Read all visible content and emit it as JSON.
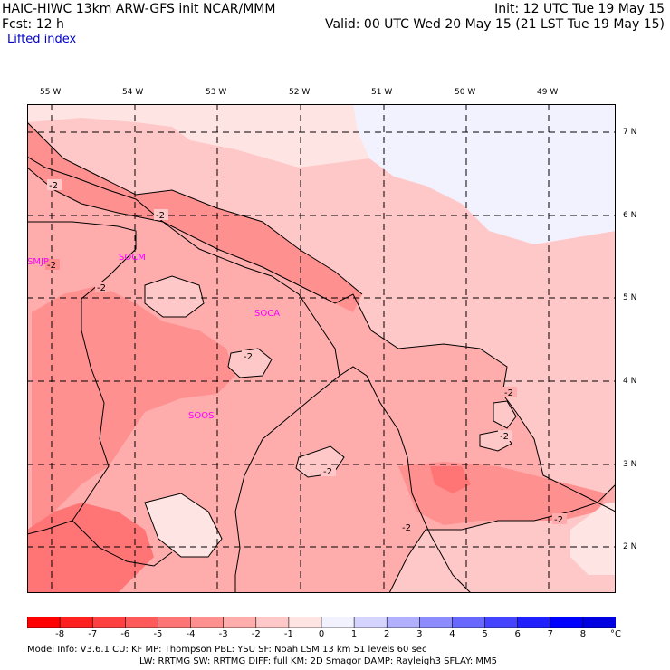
{
  "header": {
    "title_left": "HAIC-HIWC 13km ARW-GFS init   NCAR/MMM",
    "init": "Init: 12 UTC Tue 19 May 15",
    "fcst": "Fcst:    12 h",
    "valid": "Valid: 00 UTC Wed 20 May 15 (21 LST Tue 19 May 15)",
    "field": "Lifted index"
  },
  "longitudes": [
    "55 W",
    "54 W",
    "53 W",
    "52 W",
    "51 W",
    "50 W",
    "49 W"
  ],
  "latitudes": [
    "7 N",
    "6 N",
    "5 N",
    "4 N",
    "3 N",
    "2 N"
  ],
  "contour_labels": [
    "-2",
    "-2",
    "-2",
    "-2",
    "-2",
    "-2",
    "-2",
    "-2",
    "-2",
    "-2"
  ],
  "stations": [
    "SMJP",
    "SOCM",
    "SOCA",
    "SOOS"
  ],
  "colorbar": {
    "labels": [
      "-8",
      "-7",
      "-6",
      "-5",
      "-4",
      "-3",
      "-2",
      "-1",
      "0",
      "1",
      "2",
      "3",
      "4",
      "5",
      "6",
      "7",
      "8"
    ],
    "unit": "°C",
    "colors": [
      "#ff0000",
      "#ff2020",
      "#ff4040",
      "#ff5a5a",
      "#ff7575",
      "#ff9090",
      "#ffacac",
      "#ffc8c8",
      "#ffe4e4",
      "#f2f2ff",
      "#d4d4ff",
      "#b0b0ff",
      "#8c8cff",
      "#6868ff",
      "#4444ff",
      "#2020ff",
      "#0000ff",
      "#0000e0"
    ]
  },
  "footer": {
    "line1": "Model Info: V3.6.1     CU: KF        MP: Thompson      PBL: YSU        SF: Noah LSM       13 km    51 levels    60 sec",
    "line2": "LW: RRTMG     SW: RRTMG    DIFF: full     KM: 2D Smagor  DAMP: Rayleigh3   SFLAY: MM5"
  }
}
